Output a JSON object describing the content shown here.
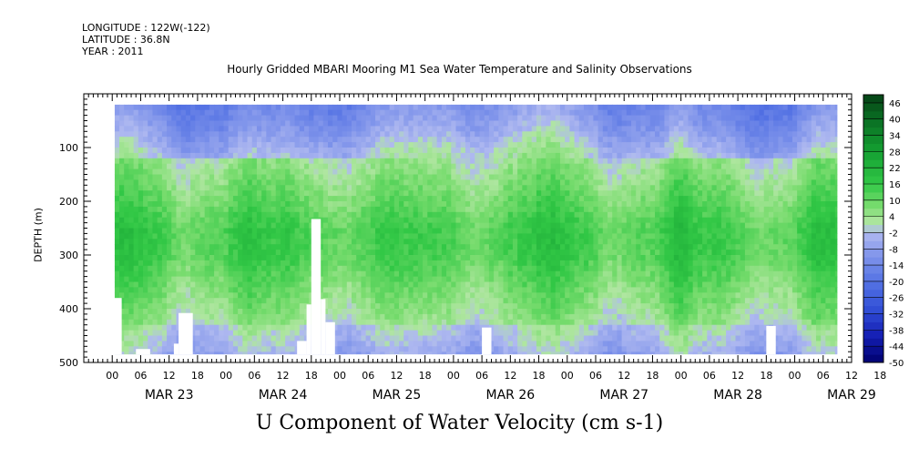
{
  "header": {
    "longitude": "LONGITUDE : 122W(-122)",
    "latitude": "LATITUDE : 36.8N",
    "year": "YEAR : 2011"
  },
  "chart_data": {
    "type": "heatmap",
    "title": "Hourly Gridded MBARI Mooring M1 Sea Water Temperature and Salinity Observations",
    "xlabel": "U Component of Water Velocity (cm s-1)",
    "ylabel": "DEPTH (m)",
    "colorbar_ticks": [
      46,
      40,
      34,
      28,
      22,
      16,
      10,
      4,
      -2,
      -8,
      -14,
      -20,
      -26,
      -32,
      -38,
      -44,
      -50
    ],
    "colorbar_range": [
      -50,
      49
    ],
    "y_ticks": [
      100,
      200,
      300,
      400,
      500
    ],
    "y_range": [
      500,
      0
    ],
    "x_hour_ticks": [
      "00",
      "06",
      "12",
      "18",
      "00",
      "06",
      "12",
      "18",
      "00",
      "06",
      "12",
      "18",
      "00",
      "06",
      "12",
      "18",
      "00",
      "06",
      "12",
      "18",
      "00",
      "06",
      "12",
      "18",
      "00",
      "06",
      "12",
      "18"
    ],
    "x_day_labels": [
      "MAR 23",
      "MAR 24",
      "MAR 25",
      "MAR 26",
      "MAR 27",
      "MAR 28",
      "MAR 29"
    ],
    "x_range_hours": [
      -6,
      156
    ],
    "data_extent_hours": [
      0.5,
      153
    ],
    "data_depth_range": [
      20,
      485
    ],
    "depth_profile": [
      {
        "depth": 20,
        "u": -8
      },
      {
        "depth": 60,
        "u": -4
      },
      {
        "depth": 100,
        "u": 2
      },
      {
        "depth": 150,
        "u": 6
      },
      {
        "depth": 200,
        "u": 10
      },
      {
        "depth": 250,
        "u": 14
      },
      {
        "depth": 300,
        "u": 13
      },
      {
        "depth": 350,
        "u": 9
      },
      {
        "depth": 400,
        "u": 5
      },
      {
        "depth": 450,
        "u": 1
      },
      {
        "depth": 485,
        "u": -3
      }
    ],
    "missing_regions": [
      {
        "t0": 0,
        "t1": 2,
        "d0": 380,
        "d1": 485
      },
      {
        "t0": 5,
        "t1": 8,
        "d0": 475,
        "d1": 485
      },
      {
        "t0": 13,
        "t1": 14,
        "d0": 465,
        "d1": 485
      },
      {
        "t0": 14,
        "t1": 17,
        "d0": 408,
        "d1": 485
      },
      {
        "t0": 39,
        "t1": 41,
        "d0": 460,
        "d1": 485
      },
      {
        "t0": 41,
        "t1": 42,
        "d0": 392,
        "d1": 485
      },
      {
        "t0": 42,
        "t1": 44,
        "d0": 233,
        "d1": 485
      },
      {
        "t0": 44,
        "t1": 45,
        "d0": 382,
        "d1": 485
      },
      {
        "t0": 45,
        "t1": 47,
        "d0": 425,
        "d1": 485
      },
      {
        "t0": 78,
        "t1": 80,
        "d0": 435,
        "d1": 485
      },
      {
        "t0": 138,
        "t1": 140,
        "d0": 432,
        "d1": 485
      }
    ]
  }
}
